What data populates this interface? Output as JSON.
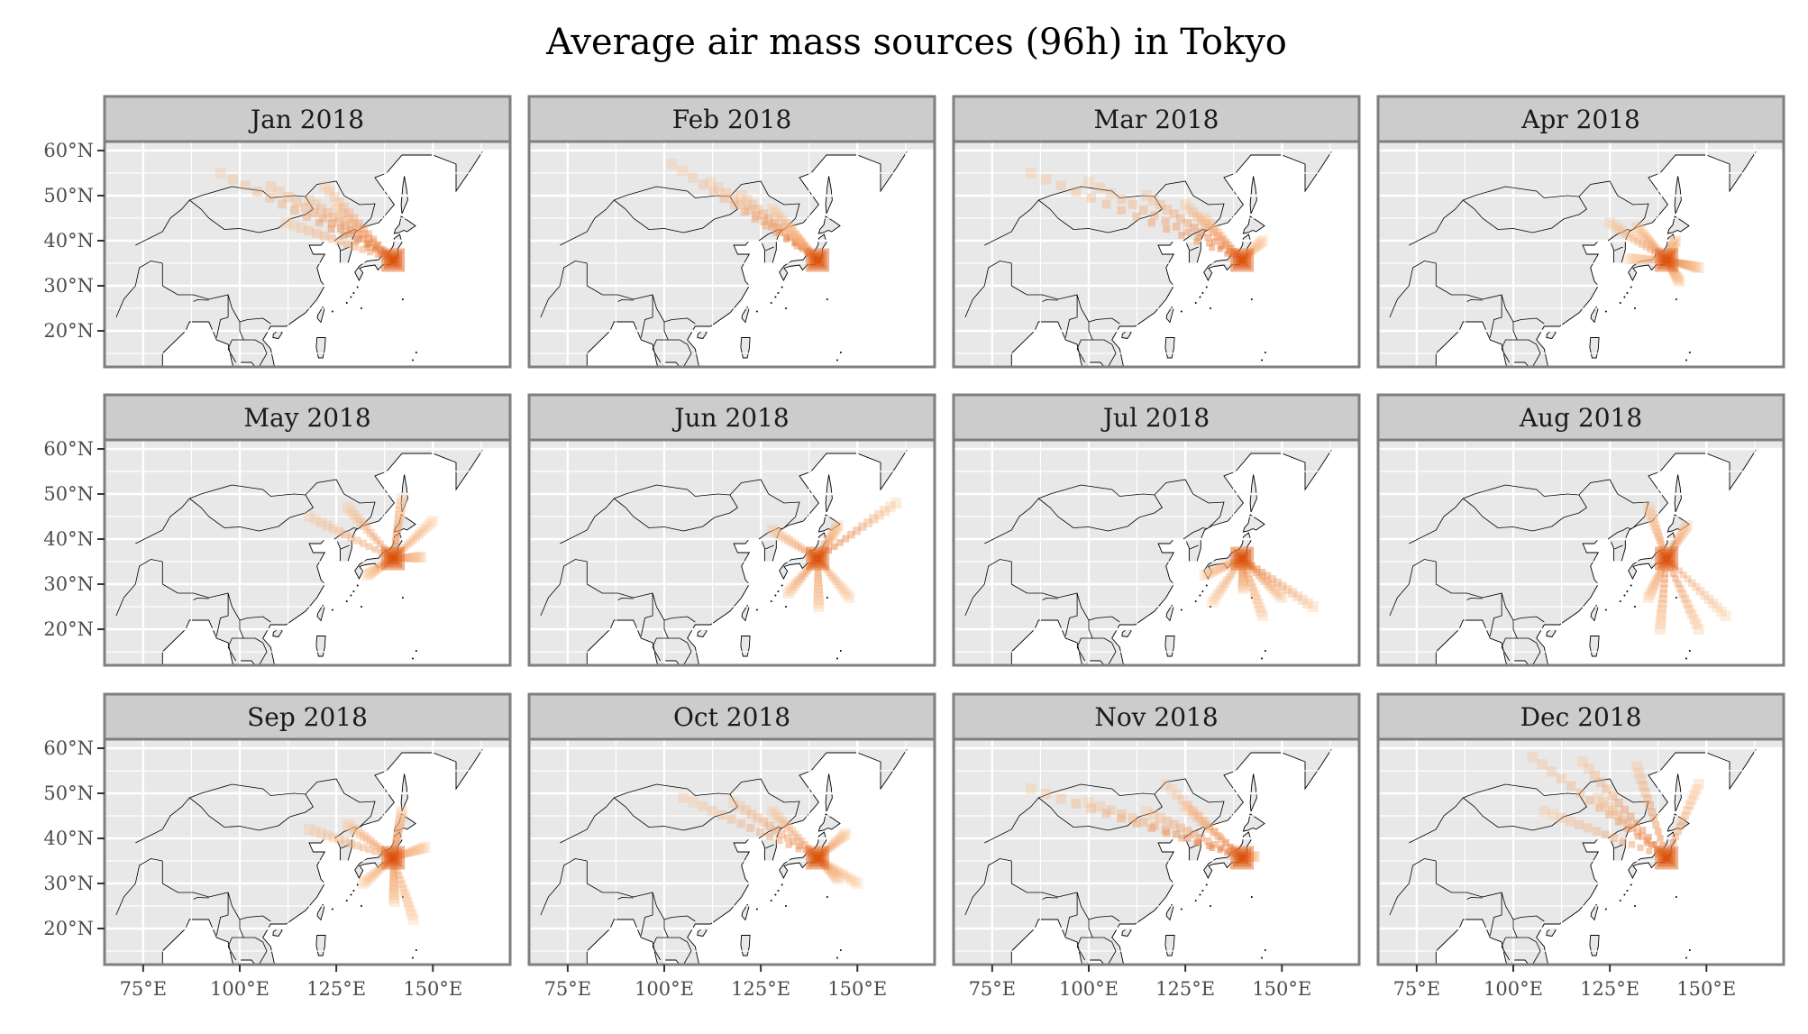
{
  "title": "Average air mass sources (96h) in Tokyo",
  "panels": [
    {
      "label": "Jan 2018",
      "lobes": [
        [
          95,
          55,
          0.65
        ],
        [
          108,
          52,
          0.75
        ],
        [
          118,
          49,
          0.8
        ],
        [
          125,
          47,
          0.7
        ],
        [
          112,
          44,
          0.55
        ],
        [
          122,
          52,
          0.6
        ]
      ]
    },
    {
      "label": "Feb 2018",
      "lobes": [
        [
          102,
          57,
          0.55
        ],
        [
          112,
          53,
          0.7
        ],
        [
          120,
          50,
          0.8
        ],
        [
          128,
          47,
          0.6
        ],
        [
          132,
          43,
          0.5
        ]
      ]
    },
    {
      "label": "Mar 2018",
      "lobes": [
        [
          85,
          55,
          0.6
        ],
        [
          100,
          53,
          0.65
        ],
        [
          115,
          50,
          0.75
        ],
        [
          125,
          48,
          0.7
        ],
        [
          130,
          45,
          0.55
        ],
        [
          145,
          40,
          0.35
        ]
      ]
    },
    {
      "label": "Apr 2018",
      "lobes": [
        [
          125,
          44,
          0.55
        ],
        [
          132,
          43,
          0.6
        ],
        [
          142,
          40,
          0.5
        ],
        [
          148,
          34,
          0.7
        ],
        [
          143,
          31,
          0.55
        ],
        [
          130,
          36,
          0.35
        ]
      ]
    },
    {
      "label": "May 2018",
      "lobes": [
        [
          118,
          45,
          0.5
        ],
        [
          128,
          47,
          0.55
        ],
        [
          142,
          49,
          0.6
        ],
        [
          150,
          44,
          0.45
        ],
        [
          147,
          36,
          0.5
        ],
        [
          133,
          32,
          0.45
        ]
      ]
    },
    {
      "label": "Jun 2018",
      "lobes": [
        [
          128,
          42,
          0.5
        ],
        [
          145,
          43,
          0.6
        ],
        [
          160,
          48,
          0.7
        ],
        [
          132,
          28,
          0.55
        ],
        [
          140,
          25,
          0.5
        ],
        [
          148,
          27,
          0.4
        ]
      ]
    },
    {
      "label": "Jul 2018",
      "lobes": [
        [
          130,
          32,
          0.45
        ],
        [
          140,
          29,
          0.6
        ],
        [
          150,
          27,
          0.65
        ],
        [
          158,
          25,
          0.65
        ],
        [
          145,
          23,
          0.5
        ],
        [
          132,
          26,
          0.4
        ]
      ]
    },
    {
      "label": "Aug 2018",
      "lobes": [
        [
          135,
          47,
          0.55
        ],
        [
          145,
          43,
          0.55
        ],
        [
          135,
          27,
          0.5
        ],
        [
          138,
          20,
          0.6
        ],
        [
          148,
          20,
          0.6
        ],
        [
          155,
          23,
          0.45
        ]
      ]
    },
    {
      "label": "Sep 2018",
      "lobes": [
        [
          118,
          42,
          0.5
        ],
        [
          128,
          43,
          0.55
        ],
        [
          142,
          46,
          0.6
        ],
        [
          148,
          38,
          0.45
        ],
        [
          140,
          26,
          0.55
        ],
        [
          145,
          22,
          0.45
        ],
        [
          132,
          30,
          0.4
        ]
      ]
    },
    {
      "label": "Oct 2018",
      "lobes": [
        [
          105,
          49,
          0.55
        ],
        [
          118,
          48,
          0.65
        ],
        [
          128,
          46,
          0.55
        ],
        [
          147,
          41,
          0.5
        ],
        [
          145,
          31,
          0.5
        ],
        [
          150,
          30,
          0.35
        ]
      ]
    },
    {
      "label": "Nov 2018",
      "lobes": [
        [
          85,
          51,
          0.65
        ],
        [
          100,
          48,
          0.7
        ],
        [
          115,
          46,
          0.7
        ],
        [
          125,
          47,
          0.6
        ],
        [
          120,
          52,
          0.5
        ],
        [
          143,
          36,
          0.4
        ]
      ]
    },
    {
      "label": "Dec 2018",
      "lobes": [
        [
          105,
          58,
          0.6
        ],
        [
          118,
          57,
          0.7
        ],
        [
          132,
          56,
          0.65
        ],
        [
          148,
          52,
          0.55
        ],
        [
          108,
          46,
          0.55
        ],
        [
          122,
          49,
          0.7
        ]
      ]
    }
  ],
  "x_ticks": [
    {
      "value": 75,
      "label": "75°E"
    },
    {
      "value": 100,
      "label": "100°E"
    },
    {
      "value": 125,
      "label": "125°E"
    },
    {
      "value": 150,
      "label": "150°E"
    }
  ],
  "y_ticks": [
    {
      "value": 20,
      "label": "20°N"
    },
    {
      "value": 30,
      "label": "30°N"
    },
    {
      "value": 40,
      "label": "40°N"
    },
    {
      "value": 50,
      "label": "50°N"
    },
    {
      "value": 60,
      "label": "60°N"
    }
  ],
  "source": {
    "lon": 139.7,
    "lat": 35.7
  },
  "colors": {
    "land": "#e8e8e8",
    "sea": "#ffffff",
    "grid": "#ffffff",
    "strip": "#cccccc",
    "frame": "#7f7f7f",
    "border": "#000000",
    "heat_low": "#fdd0a2",
    "heat_high": "#d94801"
  }
}
